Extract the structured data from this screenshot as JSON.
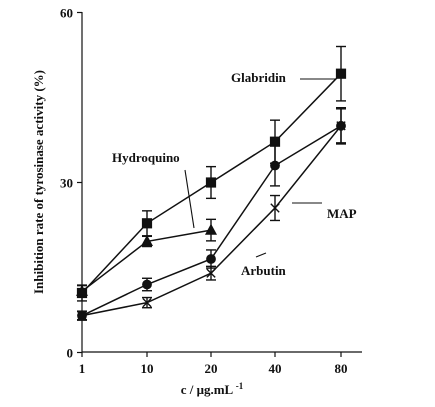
{
  "chart_data": {
    "type": "line",
    "title": "",
    "xlabel": "c / μg.mL",
    "xlabel_superscript": "-1",
    "ylabel": "Inhibition rate of tyrosinase activity (%)",
    "categories": [
      "1",
      "10",
      "20",
      "40",
      "80"
    ],
    "x_scale": "categorical",
    "ylim": [
      0,
      60
    ],
    "yticks": [
      0,
      30,
      60
    ],
    "grid": false,
    "legend": "direct labels",
    "series": [
      {
        "name": "Glabridin",
        "marker": "square",
        "x": [
          "1",
          "10",
          "20",
          "40",
          "80"
        ],
        "values": [
          10.5,
          22.8,
          30.0,
          37.2,
          49.2
        ],
        "errors": [
          1.4,
          2.2,
          2.8,
          3.8,
          4.8
        ]
      },
      {
        "name": "Hydroquino",
        "marker": "triangle",
        "x": [
          "1",
          "10",
          "20"
        ],
        "values": [
          10.8,
          19.6,
          21.6
        ],
        "errors": [
          1.0,
          0.9,
          1.9
        ]
      },
      {
        "name": "Arbutin",
        "marker": "circle",
        "x": [
          "1",
          "10",
          "20",
          "40",
          "80"
        ],
        "values": [
          6.5,
          12.0,
          16.5,
          33.0,
          40.0
        ],
        "errors": [
          0.8,
          1.1,
          1.6,
          3.6,
          3.2
        ]
      },
      {
        "name": "MAP",
        "marker": "x",
        "x": [
          "1",
          "10",
          "20",
          "40",
          "80"
        ],
        "values": [
          6.5,
          8.8,
          14.0,
          25.5,
          40.0
        ],
        "errors": [
          0.7,
          0.9,
          1.2,
          2.2,
          3.0
        ]
      }
    ]
  },
  "colors": {
    "ink": "#111111",
    "background": "#ffffff"
  }
}
